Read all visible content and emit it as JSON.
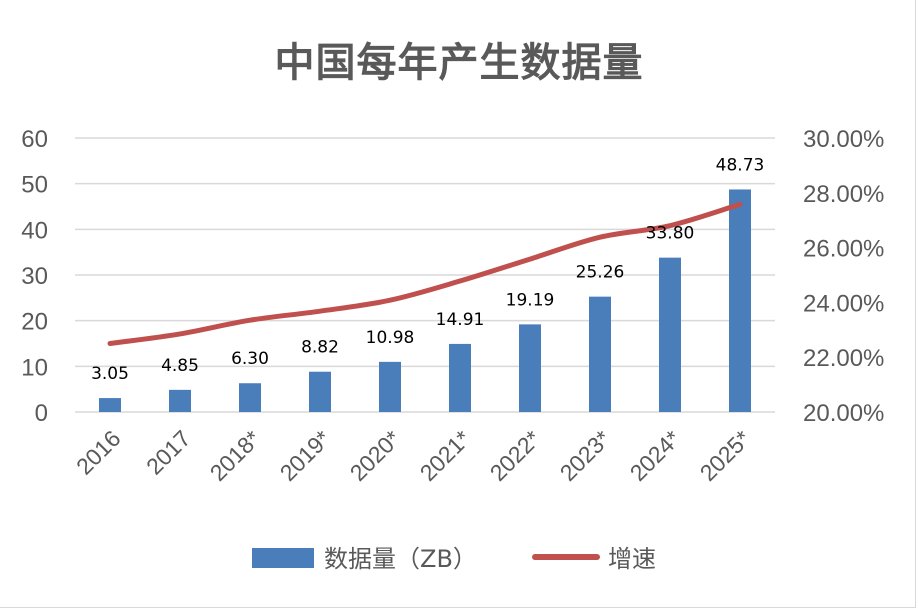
{
  "chart_data": {
    "type": "bar",
    "title": "中国每年产生数据量",
    "categories": [
      "2016",
      "2017",
      "2018*",
      "2019*",
      "2020*",
      "2021*",
      "2022*",
      "2023*",
      "2024*",
      "2025*"
    ],
    "series": [
      {
        "name": "数据量（ZB）",
        "type": "bar",
        "axis": "left",
        "color": "#4a7ebb",
        "values": [
          3.05,
          4.85,
          6.3,
          8.82,
          10.98,
          14.91,
          19.19,
          25.26,
          33.8,
          48.73
        ],
        "labels": [
          "3.05",
          "4.85",
          "6.30",
          "8.82",
          "10.98",
          "14.91",
          "19.19",
          "25.26",
          "33.80",
          "48.73"
        ]
      },
      {
        "name": "增速",
        "type": "line",
        "axis": "right",
        "color": "#c0504d",
        "values": [
          0.225,
          0.2285,
          0.2335,
          0.2368,
          0.2408,
          0.2478,
          0.2558,
          0.2638,
          0.268,
          0.2758
        ]
      }
    ],
    "y_left": {
      "min": 0,
      "max": 60,
      "ticks": [
        "0",
        "10",
        "20",
        "30",
        "40",
        "50",
        "60"
      ]
    },
    "y_right": {
      "min": 0.2,
      "max": 0.3,
      "ticks": [
        "20.00%",
        "22.00%",
        "24.00%",
        "26.00%",
        "28.00%",
        "30.00%"
      ]
    },
    "grid": true,
    "legend_position": "bottom"
  }
}
